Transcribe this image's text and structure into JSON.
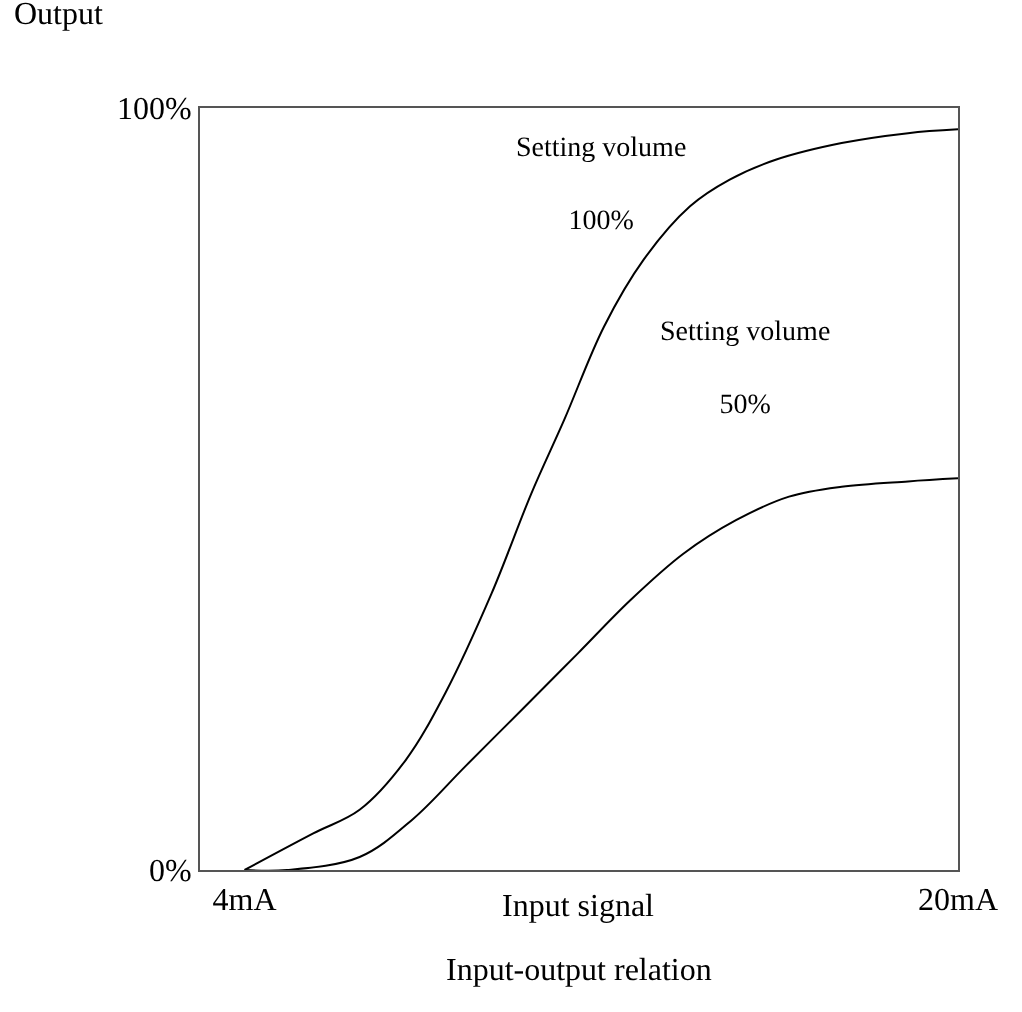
{
  "chart_data": {
    "type": "line",
    "ylabel": "Output",
    "xlabel": "Input signal",
    "annotations": [
      "Input-output relation"
    ],
    "xlim": [
      3,
      20
    ],
    "xticks": [
      {
        "value": 4,
        "label": "4mA"
      },
      {
        "value": 20,
        "label": "20mA"
      }
    ],
    "ylim": [
      0,
      100
    ],
    "yticks": [
      {
        "value": 0,
        "label": "0%"
      },
      {
        "value": 100,
        "label": "100%"
      }
    ],
    "legend": false,
    "marker": "none",
    "line_style": "solid",
    "series": [
      {
        "name": "Setting volume 100%",
        "color": "#000000",
        "x": [
          4,
          5.54,
          6.58,
          7.61,
          8.5,
          9.54,
          10.43,
          11.17,
          12.06,
          12.95,
          13.99,
          14.88,
          15.91,
          17.39,
          18.88,
          20
        ],
        "values": [
          0,
          4.8,
          7.9,
          14.4,
          23.2,
          36.3,
          49.4,
          59.1,
          71.3,
          80.1,
          87.1,
          90.6,
          93.2,
          95.4,
          96.7,
          97.2
        ]
      },
      {
        "name": "Setting volume 50%",
        "color": "#000000",
        "x": [
          4,
          4.95,
          6.58,
          7.76,
          8.95,
          10.28,
          11.47,
          12.65,
          13.84,
          15.02,
          16.21,
          17.39,
          18.88,
          20
        ],
        "values": [
          0,
          0,
          1.7,
          6.6,
          13.6,
          21.4,
          28.4,
          35.4,
          41.5,
          45.9,
          49.0,
          50.3,
          51.0,
          51.4
        ]
      }
    ]
  }
}
